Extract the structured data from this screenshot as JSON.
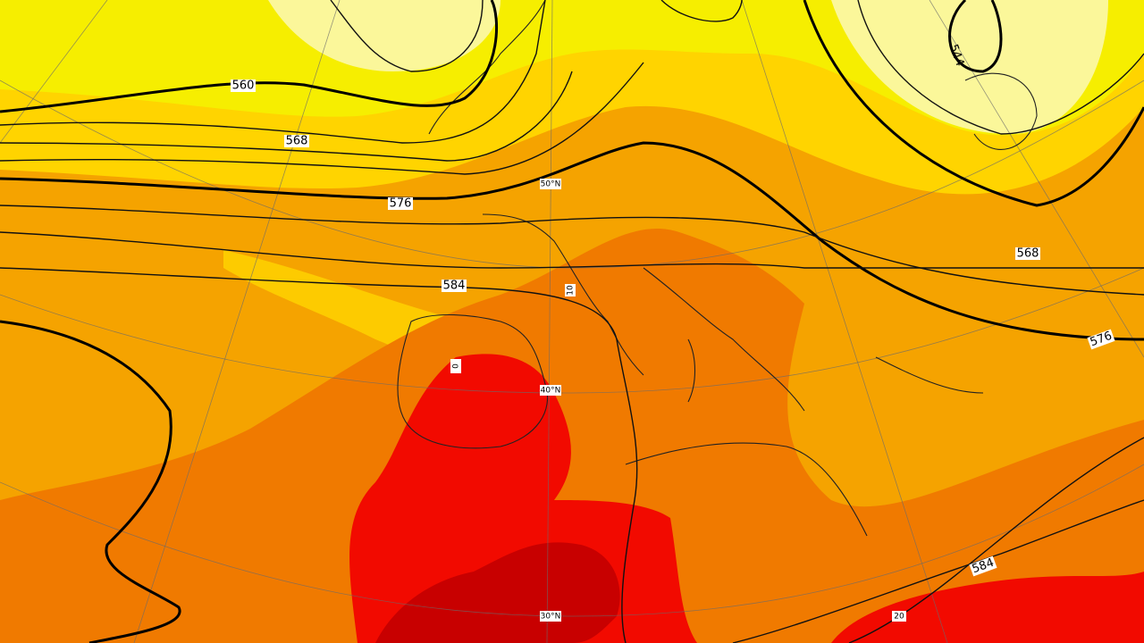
{
  "map": {
    "contour_labels": [
      "560",
      "568",
      "576",
      "584",
      "544",
      "568",
      "576",
      "584"
    ],
    "grid_labels": [
      "50°N",
      "40°N",
      "30°N",
      "10",
      "20",
      "0"
    ]
  }
}
